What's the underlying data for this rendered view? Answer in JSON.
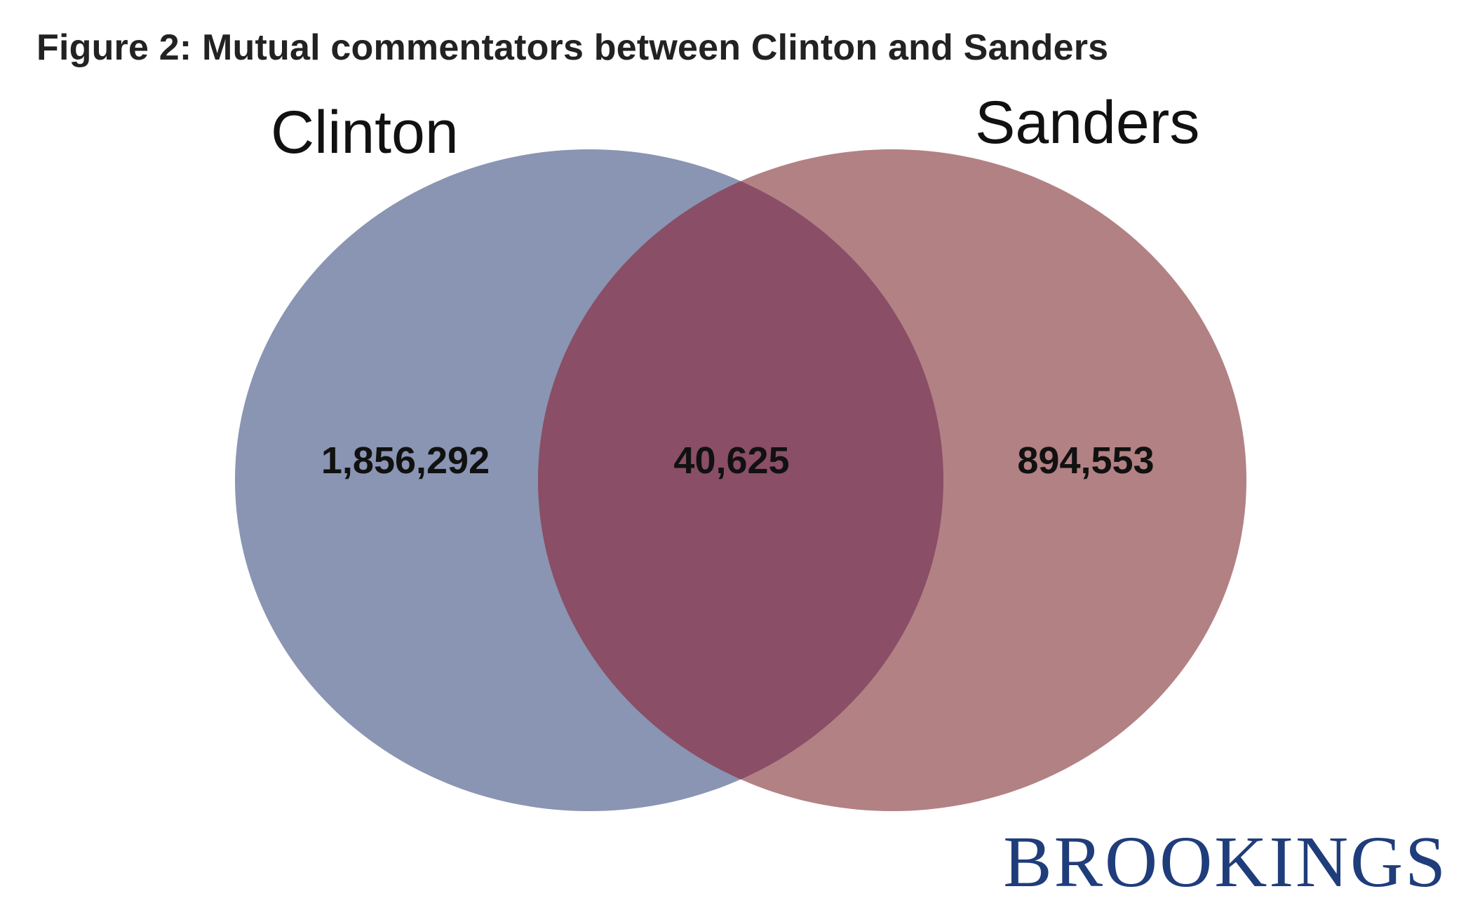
{
  "title": "Figure 2: Mutual commentators between Clinton and Sanders",
  "sets": [
    {
      "name": "Clinton",
      "only_count": "1,856,292",
      "color": "#7482a4"
    },
    {
      "name": "Sanders",
      "only_count": "894,553",
      "color": "#a56b6f"
    }
  ],
  "overlap": {
    "count": "40,625",
    "color": "#8a4e66"
  },
  "brand": {
    "name": "BROOKINGS",
    "color": "#1f3d7a"
  }
}
